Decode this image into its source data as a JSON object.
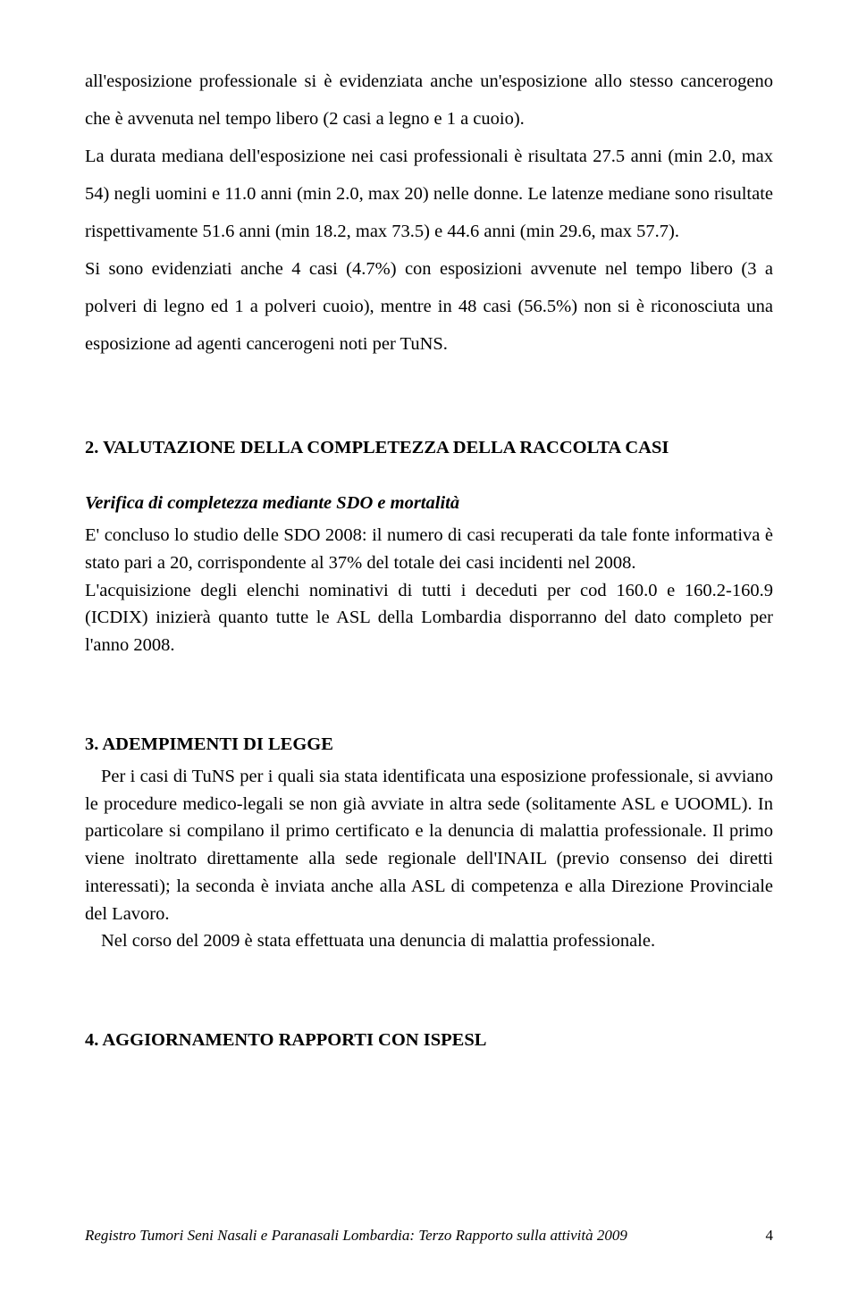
{
  "p1": "all'esposizione professionale si è evidenziata anche un'esposizione allo stesso cancerogeno che è avvenuta nel tempo libero (2 casi a legno e 1 a cuoio).",
  "p2": "La durata mediana dell'esposizione nei casi professionali è risultata 27.5 anni (min 2.0, max 54) negli uomini e 11.0 anni (min 2.0, max 20) nelle donne. Le latenze mediane sono risultate rispettivamente 51.6 anni (min 18.2, max 73.5) e 44.6 anni (min 29.6, max 57.7).",
  "p3": "Si sono evidenziati anche 4 casi (4.7%) con esposizioni avvenute nel tempo libero (3 a polveri di legno ed 1 a polveri cuoio), mentre in 48 casi (56.5%) non si è riconosciuta una esposizione ad agenti cancerogeni noti per TuNS.",
  "sec2_title": "2. VALUTAZIONE DELLA COMPLETEZZA DELLA RACCOLTA CASI",
  "sec2_sub": "Verifica di completezza mediante SDO e mortalità",
  "sec2_p1": "E' concluso lo studio delle SDO 2008: il numero di casi recuperati da tale fonte informativa è stato pari a 20, corrispondente al 37% del totale dei casi incidenti nel 2008.",
  "sec2_p2": "L'acquisizione degli elenchi nominativi di tutti i deceduti per cod 160.0 e 160.2-160.9 (ICDIX) inizierà quanto tutte le ASL della Lombardia disporranno del dato completo per l'anno 2008.",
  "sec3_title": "3. ADEMPIMENTI DI LEGGE",
  "sec3_p1": "Per i casi di TuNS per i quali sia stata identificata una esposizione professionale, si avviano le procedure medico-legali se non già avviate in altra sede (solitamente ASL e UOOML). In particolare si compilano il primo certificato e la denuncia di malattia professionale. Il primo viene inoltrato direttamente alla sede regionale dell'INAIL (previo consenso dei diretti interessati); la seconda è inviata anche alla ASL di competenza e alla Direzione Provinciale del Lavoro.",
  "sec3_p2": "Nel corso del 2009 è stata effettuata una denuncia di malattia professionale.",
  "sec4_title": "4. AGGIORNAMENTO RAPPORTI CON ISPESL",
  "footer_text": "Registro Tumori Seni Nasali e Paranasali Lombardia: Terzo Rapporto sulla attività 2009",
  "page_num": "4"
}
